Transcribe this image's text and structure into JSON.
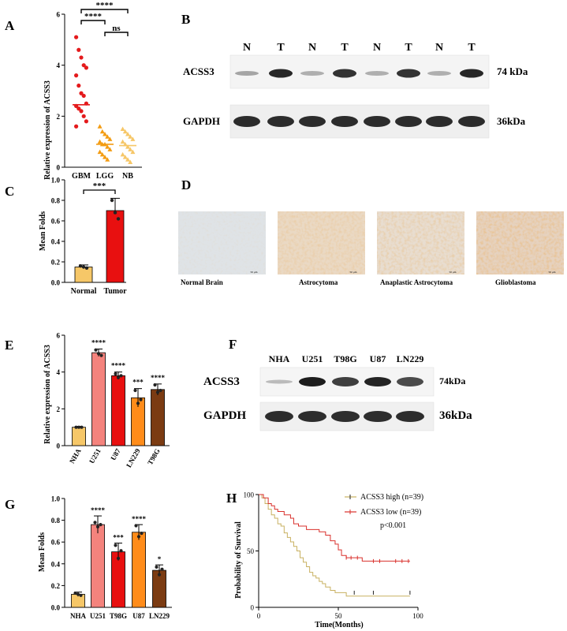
{
  "panels": {
    "A": {
      "letter": "A"
    },
    "B": {
      "letter": "B",
      "lanes": [
        "N",
        "T",
        "N",
        "T",
        "N",
        "T",
        "N",
        "T"
      ],
      "bands": [
        "ACSS3",
        "GAPDH"
      ],
      "sizes": [
        "74 kDa",
        "36kDa"
      ]
    },
    "C": {
      "letter": "C",
      "sig": "***"
    },
    "D": {
      "letter": "D",
      "captions": [
        "Normal Brain",
        "Astrocytoma",
        "Anaplastic Astrocytoma",
        "Glioblastoma"
      ],
      "scale_label": "50 μm"
    },
    "E": {
      "letter": "E"
    },
    "F": {
      "letter": "F",
      "lanes": [
        "NHA",
        "U251",
        "T98G",
        "U87",
        "LN229"
      ],
      "bands": [
        "ACSS3",
        "GAPDH"
      ],
      "sizes": [
        "74kDa",
        "36kDa"
      ]
    },
    "G": {
      "letter": "G"
    },
    "H": {
      "letter": "H",
      "legend": [
        "ACSS3 high (n=39)",
        "ACSS3 low (n=39)"
      ],
      "pvalue": "p<0.001"
    }
  },
  "colors": {
    "red": "#e41a1c",
    "orange": "#f39c12",
    "lightorange": "#f6c768",
    "darkred": "#e81010",
    "brown": "#7b3b12",
    "salmon": "#f4837d",
    "amber": "#ff8c1a",
    "hgreen": "#c8b060",
    "hred": "#d9302c"
  },
  "chart_data": [
    {
      "id": "A",
      "type": "scatter",
      "ylabel": "Relative expression of ACSS3",
      "categories": [
        "GBM",
        "LGG",
        "NB"
      ],
      "ylim": [
        0,
        6
      ],
      "yticks": [
        0,
        2,
        4,
        6
      ],
      "series": [
        {
          "category": "GBM",
          "values": [
            5.1,
            4.6,
            4.3,
            4.0,
            3.9,
            3.6,
            3.2,
            2.9,
            2.8,
            2.5,
            2.4,
            2.3,
            2.2,
            2.0,
            1.8,
            1.6
          ],
          "mean": 2.45
        },
        {
          "category": "LGG",
          "values": [
            1.6,
            1.4,
            1.3,
            1.2,
            1.1,
            1.0,
            0.9,
            0.9,
            0.8,
            0.7,
            0.6,
            0.5,
            0.4,
            0.3
          ],
          "mean": 0.9
        },
        {
          "category": "NB",
          "values": [
            1.5,
            1.4,
            1.3,
            1.2,
            1.1,
            1.0,
            0.9,
            0.8,
            0.7,
            0.6,
            0.5,
            0.4,
            0.3,
            0.2
          ],
          "mean": 0.85
        }
      ],
      "comparisons": [
        {
          "from": "GBM",
          "to": "NB",
          "label": "****"
        },
        {
          "from": "GBM",
          "to": "LGG",
          "label": "****"
        },
        {
          "from": "LGG",
          "to": "NB",
          "label": "ns"
        }
      ]
    },
    {
      "id": "C",
      "type": "bar",
      "ylabel": "Mean Folds",
      "categories": [
        "Normal",
        "Tumor"
      ],
      "values": [
        0.15,
        0.7
      ],
      "errors": [
        0.02,
        0.12
      ],
      "points": [
        [
          0.16,
          0.15,
          0.14
        ],
        [
          0.8,
          0.68,
          0.62
        ]
      ],
      "ylim": [
        0,
        1.0
      ],
      "yticks": [
        0.0,
        0.2,
        0.4,
        0.6,
        0.8,
        1.0
      ]
    },
    {
      "id": "E",
      "type": "bar",
      "ylabel": "Relative expression of ACSS3",
      "categories": [
        "NHA",
        "U251",
        "U87",
        "LN229",
        "T98G"
      ],
      "values": [
        1.0,
        5.05,
        3.8,
        2.6,
        3.05
      ],
      "errors": [
        0.05,
        0.2,
        0.2,
        0.5,
        0.3
      ],
      "points": [
        [
          1.0,
          1.0,
          1.0
        ],
        [
          5.2,
          5.0,
          4.9
        ],
        [
          3.9,
          3.7,
          3.8
        ],
        [
          3.0,
          2.3,
          2.5
        ],
        [
          3.3,
          2.9,
          3.0
        ]
      ],
      "sig": [
        "",
        "****",
        "****",
        "***",
        "****"
      ],
      "ylim": [
        0,
        6
      ],
      "yticks": [
        0,
        2,
        4,
        6
      ]
    },
    {
      "id": "G",
      "type": "bar",
      "ylabel": "Mean Folds",
      "categories": [
        "NHA",
        "U251",
        "T98G",
        "U87",
        "LN229"
      ],
      "values": [
        0.12,
        0.76,
        0.51,
        0.69,
        0.34
      ],
      "errors": [
        0.02,
        0.08,
        0.08,
        0.07,
        0.05
      ],
      "points": [
        [
          0.13,
          0.12,
          0.11
        ],
        [
          0.78,
          0.74,
          0.76
        ],
        [
          0.57,
          0.45,
          0.52
        ],
        [
          0.75,
          0.65,
          0.68
        ],
        [
          0.37,
          0.3,
          0.35
        ]
      ],
      "sig": [
        "",
        "****",
        "***",
        "****",
        "*"
      ],
      "ylim": [
        0,
        1.0
      ],
      "yticks": [
        0.0,
        0.2,
        0.4,
        0.6,
        0.8,
        1.0
      ]
    },
    {
      "id": "H",
      "type": "line",
      "xlabel": "Time(Months)",
      "ylabel": "Probability of Survival",
      "xlim": [
        0,
        100
      ],
      "ylim": [
        0,
        100
      ],
      "xticks": [
        0,
        50,
        100
      ],
      "yticks": [
        0,
        50,
        100
      ],
      "series": [
        {
          "name": "ACSS3 high (n=39)",
          "steps": [
            [
              0,
              100
            ],
            [
              2,
              97
            ],
            [
              4,
              92
            ],
            [
              6,
              87
            ],
            [
              8,
              82
            ],
            [
              10,
              79
            ],
            [
              12,
              74
            ],
            [
              14,
              72
            ],
            [
              16,
              66
            ],
            [
              18,
              62
            ],
            [
              20,
              58
            ],
            [
              22,
              54
            ],
            [
              24,
              50
            ],
            [
              26,
              44
            ],
            [
              28,
              40
            ],
            [
              30,
              36
            ],
            [
              32,
              31
            ],
            [
              34,
              28
            ],
            [
              36,
              26
            ],
            [
              38,
              23
            ],
            [
              40,
              21
            ],
            [
              42,
              18
            ],
            [
              45,
              15
            ],
            [
              48,
              13
            ],
            [
              52,
              13
            ],
            [
              55,
              10
            ],
            [
              60,
              10
            ],
            [
              95,
              10
            ]
          ],
          "censor": [
            [
              60,
              13
            ],
            [
              72,
              13
            ],
            [
              95,
              13
            ]
          ]
        },
        {
          "name": "ACSS3 low (n=39)",
          "steps": [
            [
              0,
              100
            ],
            [
              3,
              97
            ],
            [
              6,
              92
            ],
            [
              8,
              90
            ],
            [
              10,
              87
            ],
            [
              12,
              85
            ],
            [
              16,
              82
            ],
            [
              20,
              79
            ],
            [
              22,
              74
            ],
            [
              25,
              72
            ],
            [
              30,
              69
            ],
            [
              35,
              69
            ],
            [
              38,
              67
            ],
            [
              42,
              64
            ],
            [
              45,
              59
            ],
            [
              48,
              56
            ],
            [
              50,
              51
            ],
            [
              52,
              46
            ],
            [
              55,
              44
            ],
            [
              60,
              44
            ],
            [
              65,
              41
            ],
            [
              70,
              41
            ],
            [
              95,
              41
            ]
          ],
          "censor": [
            [
              55,
              44
            ],
            [
              58,
              44
            ],
            [
              62,
              44
            ],
            [
              72,
              41
            ],
            [
              76,
              41
            ],
            [
              86,
              41
            ],
            [
              90,
              41
            ],
            [
              94,
              41
            ]
          ]
        }
      ]
    }
  ]
}
